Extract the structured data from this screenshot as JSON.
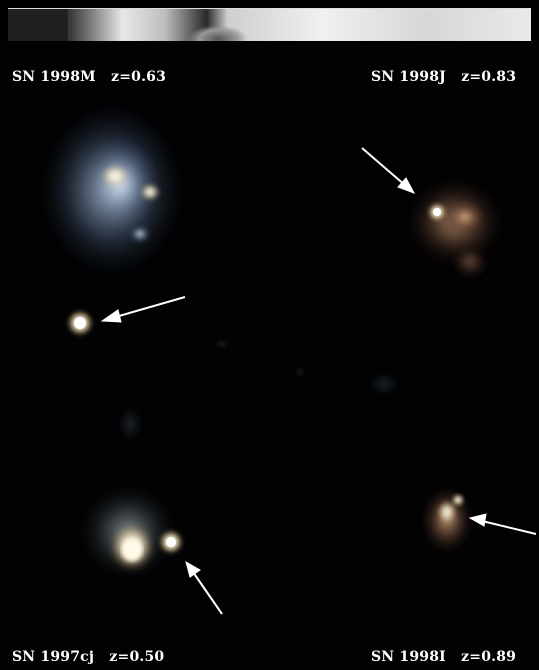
{
  "labels": {
    "top_left": "SN 1998M   z=0.63",
    "top_right": "SN 1998J   z=0.83",
    "bottom_left": "SN 1997cj   z=0.50",
    "bottom_right": "SN 1998I   z=0.89"
  },
  "colors": {
    "background": "#020203",
    "label_text": "#ffffff",
    "arrow": "#ffffff"
  }
}
